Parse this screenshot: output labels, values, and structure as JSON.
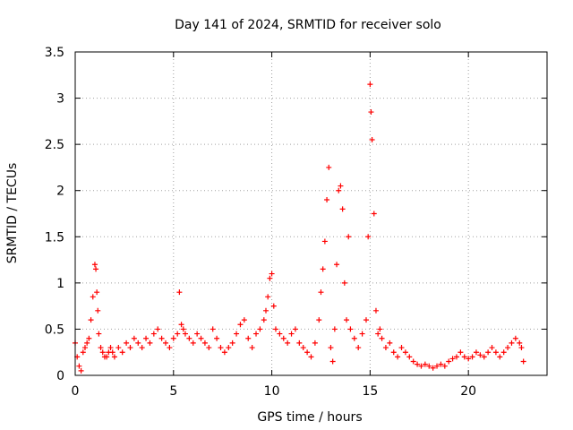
{
  "chart_data": {
    "type": "scatter",
    "title": "Day 141 of 2024, SRMTID for receiver solo",
    "xlabel": "GPS time / hours",
    "ylabel": "SRMTID / TECUs",
    "xlim": [
      0,
      24
    ],
    "ylim": [
      0,
      3.5
    ],
    "xticks": [
      0,
      5,
      10,
      15,
      20
    ],
    "xtick_labels": [
      "0",
      "5",
      "10",
      "15",
      "20"
    ],
    "yticks": [
      0,
      0.5,
      1,
      1.5,
      2,
      2.5,
      3,
      3.5
    ],
    "ytick_labels": [
      "0",
      "0.5",
      "1",
      "1.5",
      "2",
      "2.5",
      "3",
      "3.5"
    ],
    "grid": true,
    "marker": "plus",
    "color": "#ff0000",
    "series": [
      {
        "name": "SRMTID",
        "x": [
          0.0,
          0.1,
          0.2,
          0.3,
          0.4,
          0.5,
          0.6,
          0.7,
          0.8,
          0.9,
          1.0,
          1.05,
          1.1,
          1.15,
          1.2,
          1.3,
          1.4,
          1.5,
          1.6,
          1.7,
          1.8,
          1.9,
          2.0,
          2.2,
          2.4,
          2.6,
          2.8,
          3.0,
          3.2,
          3.4,
          3.6,
          3.8,
          4.0,
          4.2,
          4.4,
          4.6,
          4.8,
          5.0,
          5.2,
          5.3,
          5.4,
          5.5,
          5.6,
          5.8,
          6.0,
          6.2,
          6.4,
          6.6,
          6.8,
          7.0,
          7.2,
          7.4,
          7.6,
          7.8,
          8.0,
          8.2,
          8.4,
          8.6,
          8.8,
          9.0,
          9.2,
          9.4,
          9.6,
          9.7,
          9.8,
          9.9,
          10.0,
          10.1,
          10.2,
          10.4,
          10.6,
          10.8,
          11.0,
          11.2,
          11.4,
          11.6,
          11.8,
          12.0,
          12.2,
          12.4,
          12.5,
          12.6,
          12.7,
          12.8,
          12.9,
          13.0,
          13.1,
          13.2,
          13.3,
          13.4,
          13.5,
          13.6,
          13.7,
          13.8,
          13.9,
          14.0,
          14.2,
          14.4,
          14.6,
          14.8,
          14.9,
          15.0,
          15.05,
          15.1,
          15.2,
          15.3,
          15.4,
          15.5,
          15.6,
          15.8,
          16.0,
          16.2,
          16.4,
          16.6,
          16.8,
          17.0,
          17.2,
          17.4,
          17.6,
          17.8,
          18.0,
          18.2,
          18.4,
          18.6,
          18.8,
          19.0,
          19.2,
          19.4,
          19.6,
          19.8,
          20.0,
          20.2,
          20.4,
          20.6,
          20.8,
          21.0,
          21.2,
          21.4,
          21.6,
          21.8,
          22.0,
          22.2,
          22.4,
          22.6,
          22.7,
          22.8
        ],
        "y": [
          0.35,
          0.2,
          0.1,
          0.05,
          0.25,
          0.3,
          0.35,
          0.4,
          0.6,
          0.85,
          1.2,
          1.15,
          0.9,
          0.7,
          0.45,
          0.3,
          0.25,
          0.2,
          0.2,
          0.25,
          0.3,
          0.25,
          0.2,
          0.3,
          0.25,
          0.35,
          0.3,
          0.4,
          0.35,
          0.3,
          0.4,
          0.35,
          0.45,
          0.5,
          0.4,
          0.35,
          0.3,
          0.4,
          0.45,
          0.9,
          0.55,
          0.5,
          0.45,
          0.4,
          0.35,
          0.45,
          0.4,
          0.35,
          0.3,
          0.5,
          0.4,
          0.3,
          0.25,
          0.3,
          0.35,
          0.45,
          0.55,
          0.6,
          0.4,
          0.3,
          0.45,
          0.5,
          0.6,
          0.7,
          0.85,
          1.05,
          1.1,
          0.75,
          0.5,
          0.45,
          0.4,
          0.35,
          0.45,
          0.5,
          0.35,
          0.3,
          0.25,
          0.2,
          0.35,
          0.6,
          0.9,
          1.15,
          1.45,
          1.9,
          2.25,
          0.3,
          0.15,
          0.5,
          1.2,
          2.0,
          2.05,
          1.8,
          1.0,
          0.6,
          1.5,
          0.5,
          0.4,
          0.3,
          0.45,
          0.6,
          1.5,
          3.15,
          2.85,
          2.55,
          1.75,
          0.7,
          0.45,
          0.5,
          0.4,
          0.3,
          0.35,
          0.25,
          0.2,
          0.3,
          0.25,
          0.2,
          0.15,
          0.12,
          0.1,
          0.12,
          0.1,
          0.08,
          0.1,
          0.12,
          0.1,
          0.15,
          0.18,
          0.2,
          0.25,
          0.2,
          0.18,
          0.2,
          0.25,
          0.22,
          0.2,
          0.25,
          0.3,
          0.25,
          0.2,
          0.25,
          0.3,
          0.35,
          0.4,
          0.35,
          0.3,
          0.15
        ]
      }
    ]
  }
}
